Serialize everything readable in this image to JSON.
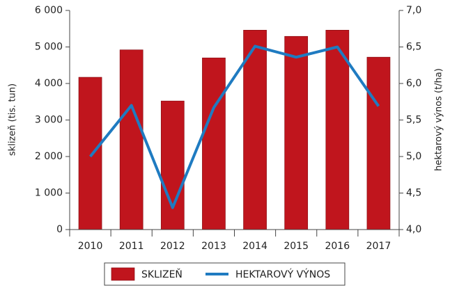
{
  "chart_data": {
    "type": "bar",
    "categories": [
      "2010",
      "2011",
      "2012",
      "2013",
      "2014",
      "2015",
      "2016",
      "2017"
    ],
    "series": [
      {
        "name": "SKLIZEŇ",
        "type": "bar",
        "color": "#c0151d",
        "values": [
          4170,
          4920,
          3520,
          4700,
          5460,
          5290,
          5460,
          4720
        ]
      },
      {
        "name": "HEKTAROVÝ VÝNOS",
        "type": "line",
        "axis": "y2",
        "color": "#1f7bc1",
        "values": [
          5.0,
          5.7,
          4.3,
          5.67,
          6.51,
          6.36,
          6.5,
          5.69
        ]
      }
    ],
    "ylabel": "sklizeň (tis. tun)",
    "y2label": "hektarový výnos (t/ha)",
    "ylim": [
      0,
      6000
    ],
    "yticks": [
      0,
      {
        "value": 1000,
        "label": "1 000"
      },
      {
        "value": 2000,
        "label": "2 000"
      },
      {
        "value": 3000,
        "label": "3 000"
      },
      {
        "value": 4000,
        "label": "4 000"
      },
      {
        "value": 5000,
        "label": "5 000"
      },
      {
        "value": 6000,
        "label": "6 000"
      }
    ],
    "y2lim": [
      4,
      7
    ],
    "y2ticks": [
      {
        "value": 4,
        "label": "4,0"
      },
      {
        "value": 4.5,
        "label": "4,5"
      },
      {
        "value": 5,
        "label": "5,0"
      },
      {
        "value": 5.5,
        "label": "5,5"
      },
      {
        "value": 6,
        "label": "6,0"
      },
      {
        "value": 6.5,
        "label": "6,5"
      },
      {
        "value": 7,
        "label": "7,0"
      }
    ],
    "legend": "bottom"
  }
}
